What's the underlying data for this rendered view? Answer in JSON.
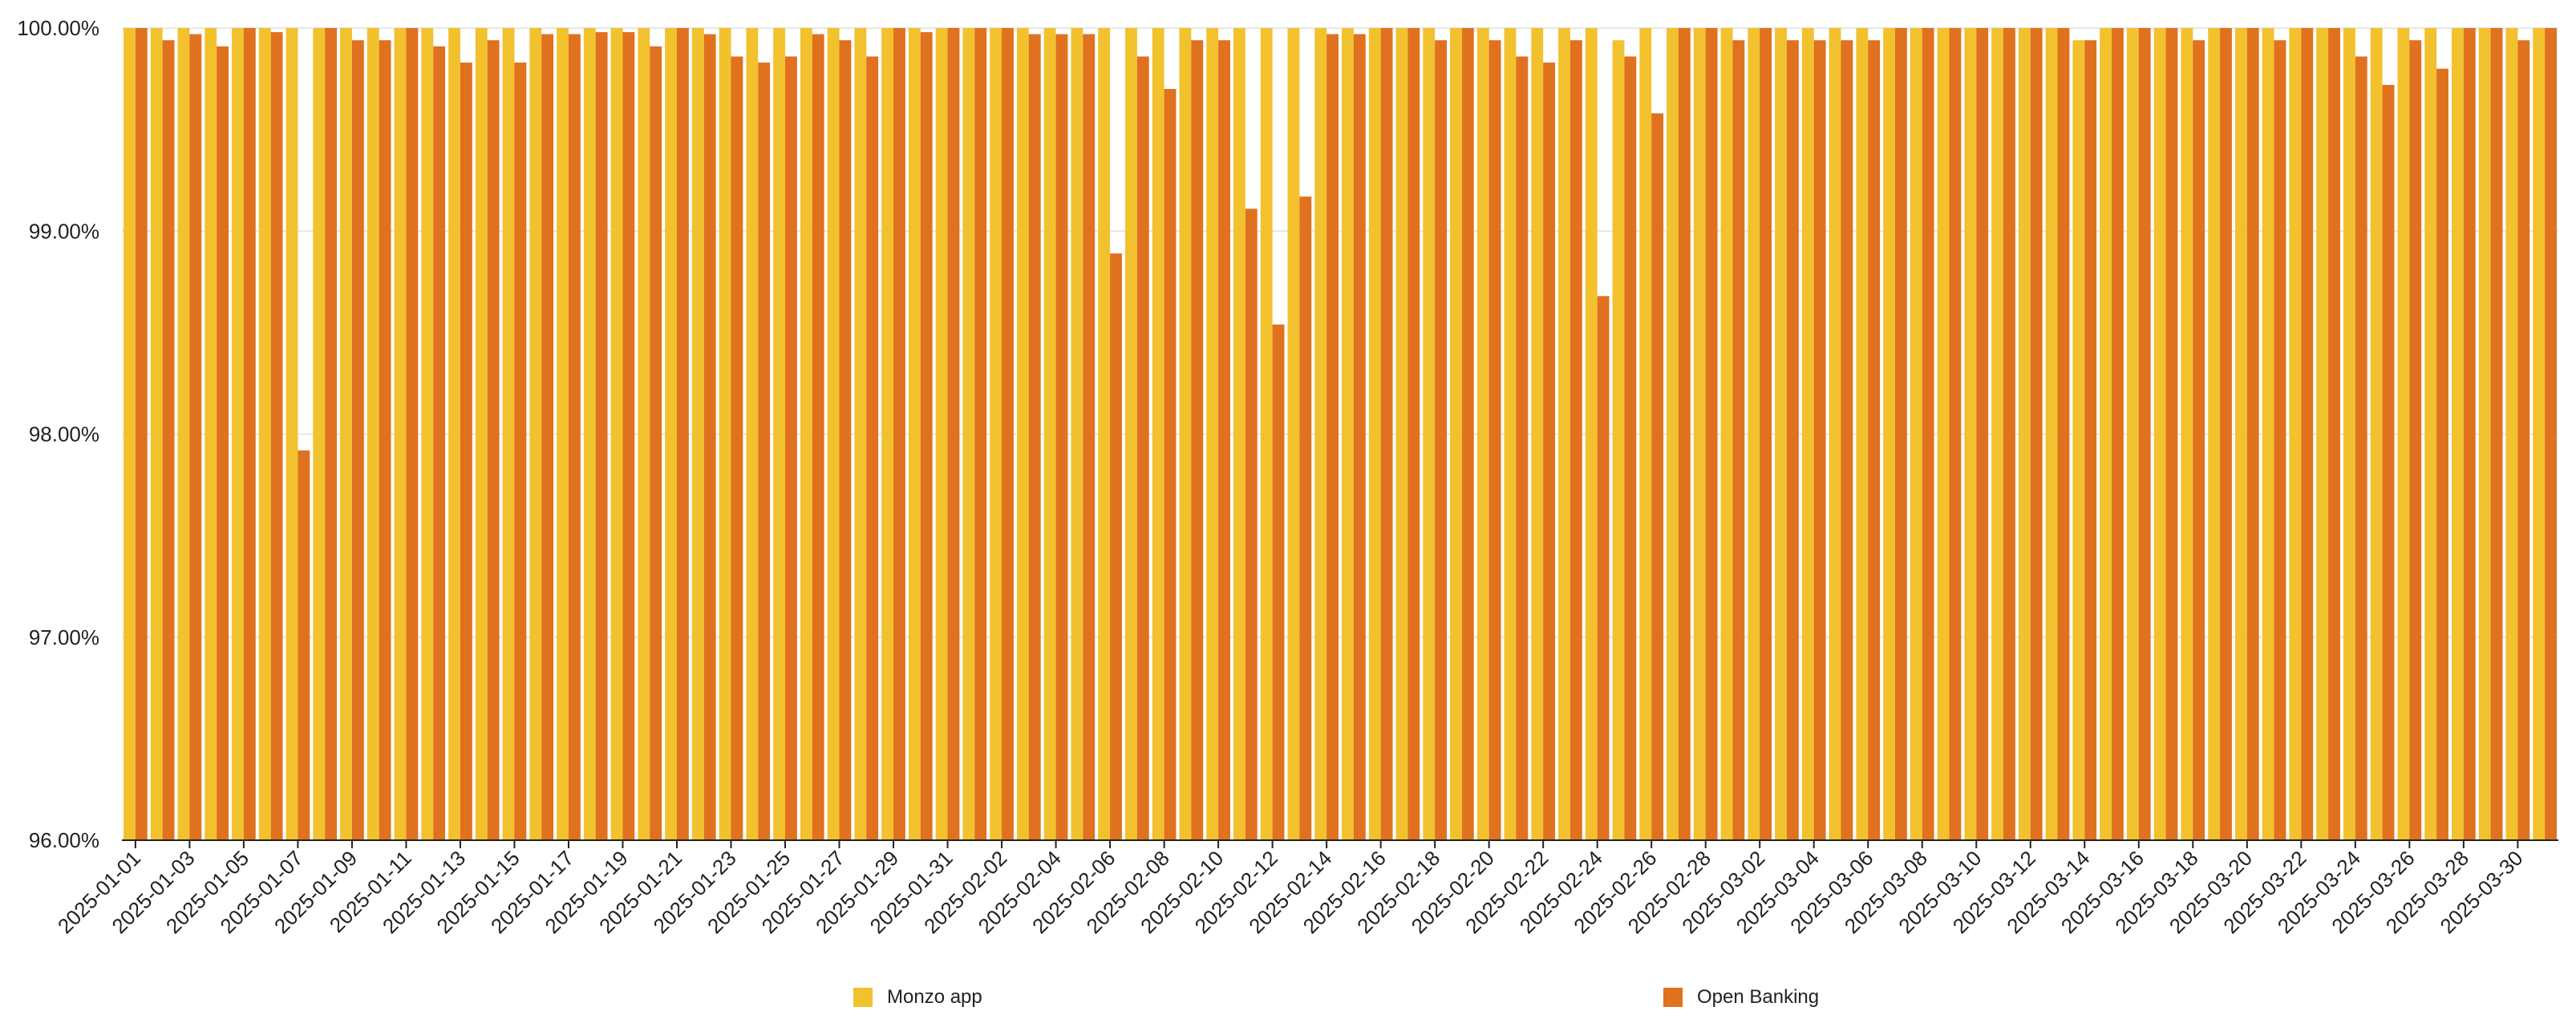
{
  "colors": {
    "monzo_app": "#F2C12E",
    "open_banking": "#E0711F",
    "grid": "#E6E6E6",
    "axis": "#222222",
    "text": "#222222"
  },
  "legend": {
    "monzo_app": "Monzo app",
    "open_banking": "Open Banking"
  },
  "chart_data": {
    "type": "bar",
    "ylim": [
      96,
      100
    ],
    "y_ticks": [
      "96.00%",
      "97.00%",
      "98.00%",
      "99.00%",
      "100.00%"
    ],
    "y_tick_values": [
      96,
      97,
      98,
      99,
      100
    ],
    "grid": true,
    "legend_position": "bottom",
    "categories": [
      "2025-01-01",
      "2025-01-02",
      "2025-01-03",
      "2025-01-04",
      "2025-01-05",
      "2025-01-06",
      "2025-01-07",
      "2025-01-08",
      "2025-01-09",
      "2025-01-10",
      "2025-01-11",
      "2025-01-12",
      "2025-01-13",
      "2025-01-14",
      "2025-01-15",
      "2025-01-16",
      "2025-01-17",
      "2025-01-18",
      "2025-01-19",
      "2025-01-20",
      "2025-01-21",
      "2025-01-22",
      "2025-01-23",
      "2025-01-24",
      "2025-01-25",
      "2025-01-26",
      "2025-01-27",
      "2025-01-28",
      "2025-01-29",
      "2025-01-30",
      "2025-01-31",
      "2025-02-01",
      "2025-02-02",
      "2025-02-03",
      "2025-02-04",
      "2025-02-05",
      "2025-02-06",
      "2025-02-07",
      "2025-02-08",
      "2025-02-09",
      "2025-02-10",
      "2025-02-11",
      "2025-02-12",
      "2025-02-13",
      "2025-02-14",
      "2025-02-15",
      "2025-02-16",
      "2025-02-17",
      "2025-02-18",
      "2025-02-19",
      "2025-02-20",
      "2025-02-21",
      "2025-02-22",
      "2025-02-23",
      "2025-02-24",
      "2025-02-25",
      "2025-02-26",
      "2025-02-27",
      "2025-02-28",
      "2025-03-01",
      "2025-03-02",
      "2025-03-03",
      "2025-03-04",
      "2025-03-05",
      "2025-03-06",
      "2025-03-07",
      "2025-03-08",
      "2025-03-09",
      "2025-03-10",
      "2025-03-11",
      "2025-03-12",
      "2025-03-13",
      "2025-03-14",
      "2025-03-15",
      "2025-03-16",
      "2025-03-17",
      "2025-03-18",
      "2025-03-19",
      "2025-03-20",
      "2025-03-21",
      "2025-03-22",
      "2025-03-23",
      "2025-03-24",
      "2025-03-25",
      "2025-03-26",
      "2025-03-27",
      "2025-03-28",
      "2025-03-29",
      "2025-03-30",
      "2025-03-31"
    ],
    "x_tick_labels_shown": [
      "2025-01-01",
      "2025-01-03",
      "2025-01-05",
      "2025-01-07",
      "2025-01-09",
      "2025-01-11",
      "2025-01-13",
      "2025-01-15",
      "2025-01-17",
      "2025-01-19",
      "2025-01-21",
      "2025-01-23",
      "2025-01-25",
      "2025-01-27",
      "2025-01-29",
      "2025-01-31",
      "2025-02-02",
      "2025-02-04",
      "2025-02-06",
      "2025-02-08",
      "2025-02-10",
      "2025-02-12",
      "2025-02-14",
      "2025-02-16",
      "2025-02-18",
      "2025-02-20",
      "2025-02-22",
      "2025-02-24",
      "2025-02-26",
      "2025-02-28",
      "2025-03-02",
      "2025-03-04",
      "2025-03-06",
      "2025-03-08",
      "2025-03-10",
      "2025-03-12",
      "2025-03-14",
      "2025-03-16",
      "2025-03-18",
      "2025-03-20",
      "2025-03-22",
      "2025-03-24",
      "2025-03-26",
      "2025-03-28",
      "2025-03-30"
    ],
    "series": [
      {
        "name": "Monzo app",
        "values": [
          100,
          100,
          100,
          100,
          100,
          100,
          100,
          100,
          100,
          100,
          100,
          100,
          100,
          100,
          100,
          100,
          100,
          100,
          100,
          100,
          100,
          100,
          100,
          100,
          100,
          100,
          100,
          100,
          100,
          100,
          100,
          100,
          100,
          100,
          100,
          100,
          100,
          100,
          100,
          100,
          100,
          100,
          100,
          100,
          100,
          100,
          100,
          100,
          100,
          100,
          100,
          100,
          100,
          100,
          100,
          99.94,
          100,
          100,
          100,
          100,
          100,
          100,
          100,
          100,
          100,
          100,
          100,
          100,
          100,
          100,
          100,
          100,
          99.94,
          100,
          100,
          100,
          100,
          100,
          100,
          100,
          100,
          100,
          100,
          100,
          100,
          100,
          100,
          100,
          100,
          100
        ]
      },
      {
        "name": "Open Banking",
        "values": [
          100,
          99.94,
          99.97,
          99.91,
          100,
          99.98,
          97.92,
          100,
          99.94,
          99.94,
          100,
          99.91,
          99.83,
          99.94,
          99.83,
          99.97,
          99.97,
          99.98,
          99.98,
          99.91,
          100,
          99.97,
          99.86,
          99.83,
          99.86,
          99.97,
          99.94,
          99.86,
          100,
          99.98,
          100,
          100,
          100,
          99.97,
          99.97,
          99.97,
          98.89,
          99.86,
          99.7,
          99.94,
          99.94,
          99.11,
          98.54,
          99.17,
          99.97,
          99.97,
          100,
          100,
          99.94,
          100,
          99.94,
          99.86,
          99.83,
          99.94,
          98.68,
          99.86,
          99.58,
          100,
          100,
          99.94,
          100,
          99.94,
          99.94,
          99.94,
          99.94,
          100,
          100,
          100,
          100,
          100,
          100,
          100,
          99.94,
          100,
          100,
          100,
          99.94,
          100,
          100,
          99.94,
          100,
          100,
          99.86,
          99.72,
          99.94,
          99.8,
          100,
          100,
          99.94,
          100
        ]
      }
    ]
  }
}
